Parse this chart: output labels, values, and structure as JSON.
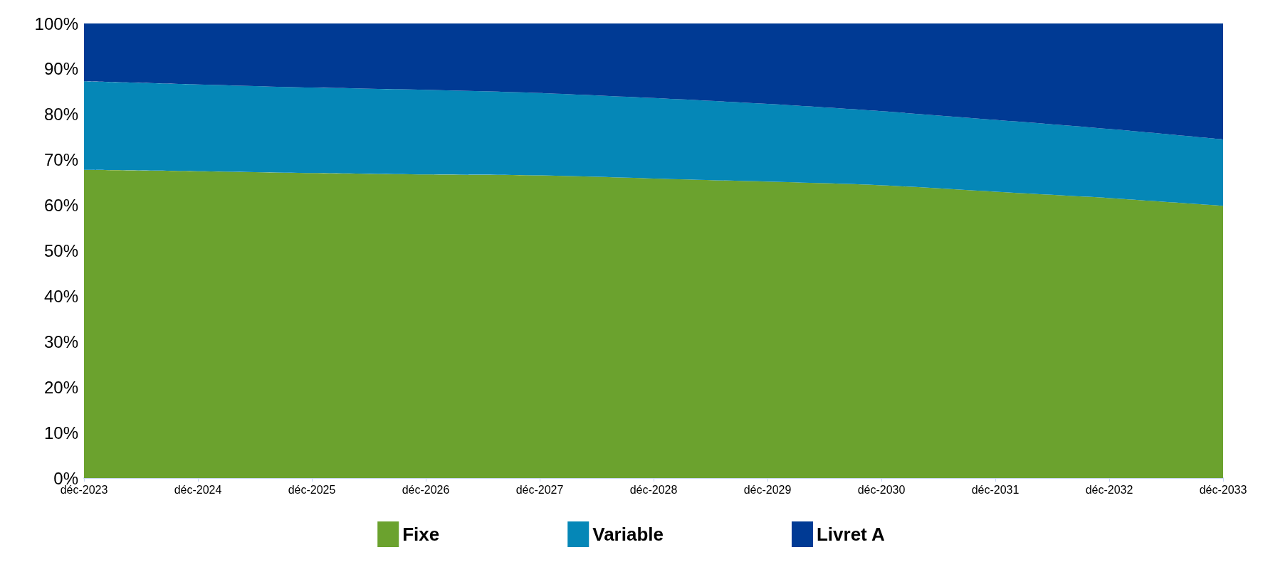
{
  "chart_data": {
    "type": "area",
    "stacked": true,
    "categories": [
      "déc-2023",
      "déc-2024",
      "déc-2025",
      "déc-2026",
      "déc-2027",
      "déc-2028",
      "déc-2029",
      "déc-2030",
      "déc-2031",
      "déc-2032",
      "déc-2033"
    ],
    "series": [
      {
        "name": "Fixe",
        "color": "#6ba22e",
        "values": [
          67.8,
          67.5,
          67.1,
          66.8,
          66.6,
          65.9,
          65.2,
          64.4,
          63.0,
          61.6,
          59.9
        ]
      },
      {
        "name": "Variable",
        "color": "#0587b7",
        "values": [
          19.5,
          19.1,
          18.8,
          18.6,
          18.1,
          17.7,
          17.1,
          16.3,
          15.8,
          15.2,
          14.6
        ]
      },
      {
        "name": "Livret A",
        "color": "#003a94",
        "values": [
          12.7,
          13.4,
          14.1,
          14.6,
          15.3,
          16.4,
          17.7,
          19.3,
          21.2,
          23.2,
          25.5
        ]
      }
    ],
    "ylim": [
      0,
      100
    ],
    "yticks": [
      {
        "value": 0,
        "label": "0%"
      },
      {
        "value": 10,
        "label": "10%"
      },
      {
        "value": 20,
        "label": "20%"
      },
      {
        "value": 30,
        "label": "30%"
      },
      {
        "value": 40,
        "label": "40%"
      },
      {
        "value": 50,
        "label": "50%"
      },
      {
        "value": 60,
        "label": "60%"
      },
      {
        "value": 70,
        "label": "70%"
      },
      {
        "value": 80,
        "label": "80%"
      },
      {
        "value": 90,
        "label": "90%"
      },
      {
        "value": 100,
        "label": "100%"
      }
    ],
    "grid": false,
    "legend": "bottom"
  }
}
